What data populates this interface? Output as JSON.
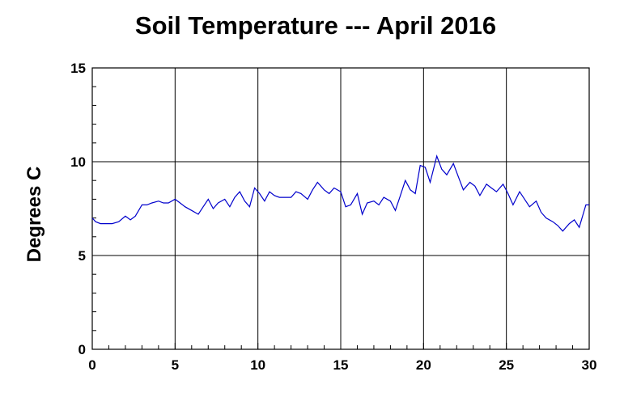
{
  "chart_data": {
    "type": "line",
    "title": "Soil Temperature --- April 2016",
    "xlabel": "",
    "ylabel": "Degrees C",
    "xlim": [
      0,
      30
    ],
    "ylim": [
      0,
      15
    ],
    "x_ticks": [
      0,
      5,
      10,
      15,
      20,
      25,
      30
    ],
    "y_ticks": [
      0,
      5,
      10,
      15
    ],
    "grid": true,
    "line_color": "#0000cc",
    "series": [
      {
        "x": [
          0,
          0.2,
          0.5,
          0.8,
          1.2,
          1.6,
          2.0,
          2.3,
          2.6,
          3.0,
          3.3,
          3.6,
          4.0,
          4.3,
          4.6,
          5.0,
          5.3,
          5.6,
          6.0,
          6.4,
          6.7,
          7.0,
          7.3,
          7.6,
          8.0,
          8.3,
          8.6,
          8.9,
          9.2,
          9.5,
          9.8,
          10.1,
          10.4,
          10.7,
          11.0,
          11.3,
          11.6,
          12.0,
          12.3,
          12.6,
          13.0,
          13.3,
          13.6,
          14.0,
          14.3,
          14.6,
          15.0,
          15.3,
          15.6,
          16.0,
          16.3,
          16.6,
          17.0,
          17.3,
          17.6,
          18.0,
          18.3,
          18.6,
          18.9,
          19.2,
          19.5,
          19.8,
          20.1,
          20.4,
          20.8,
          21.1,
          21.4,
          21.8,
          22.1,
          22.4,
          22.8,
          23.1,
          23.4,
          23.8,
          24.1,
          24.4,
          24.8,
          25.1,
          25.4,
          25.8,
          26.1,
          26.4,
          26.8,
          27.1,
          27.4,
          27.8,
          28.1,
          28.4,
          28.8,
          29.1,
          29.4,
          29.8,
          30.0
        ],
        "y": [
          7.0,
          6.8,
          6.7,
          6.7,
          6.7,
          6.8,
          7.1,
          6.9,
          7.1,
          7.7,
          7.7,
          7.8,
          7.9,
          7.8,
          7.8,
          8.0,
          7.8,
          7.6,
          7.4,
          7.2,
          7.6,
          8.0,
          7.5,
          7.8,
          8.0,
          7.6,
          8.1,
          8.4,
          7.9,
          7.6,
          8.6,
          8.3,
          7.9,
          8.4,
          8.2,
          8.1,
          8.1,
          8.1,
          8.4,
          8.3,
          8.0,
          8.5,
          8.9,
          8.5,
          8.3,
          8.6,
          8.4,
          7.6,
          7.7,
          8.3,
          7.2,
          7.8,
          7.9,
          7.7,
          8.1,
          7.9,
          7.4,
          8.2,
          9.0,
          8.5,
          8.3,
          9.8,
          9.7,
          8.9,
          10.3,
          9.6,
          9.3,
          9.9,
          9.2,
          8.5,
          8.9,
          8.7,
          8.2,
          8.8,
          8.6,
          8.4,
          8.8,
          8.3,
          7.7,
          8.4,
          8.0,
          7.6,
          7.9,
          7.3,
          7.0,
          6.8,
          6.6,
          6.3,
          6.7,
          6.9,
          6.5,
          7.7,
          7.7
        ]
      }
    ]
  }
}
